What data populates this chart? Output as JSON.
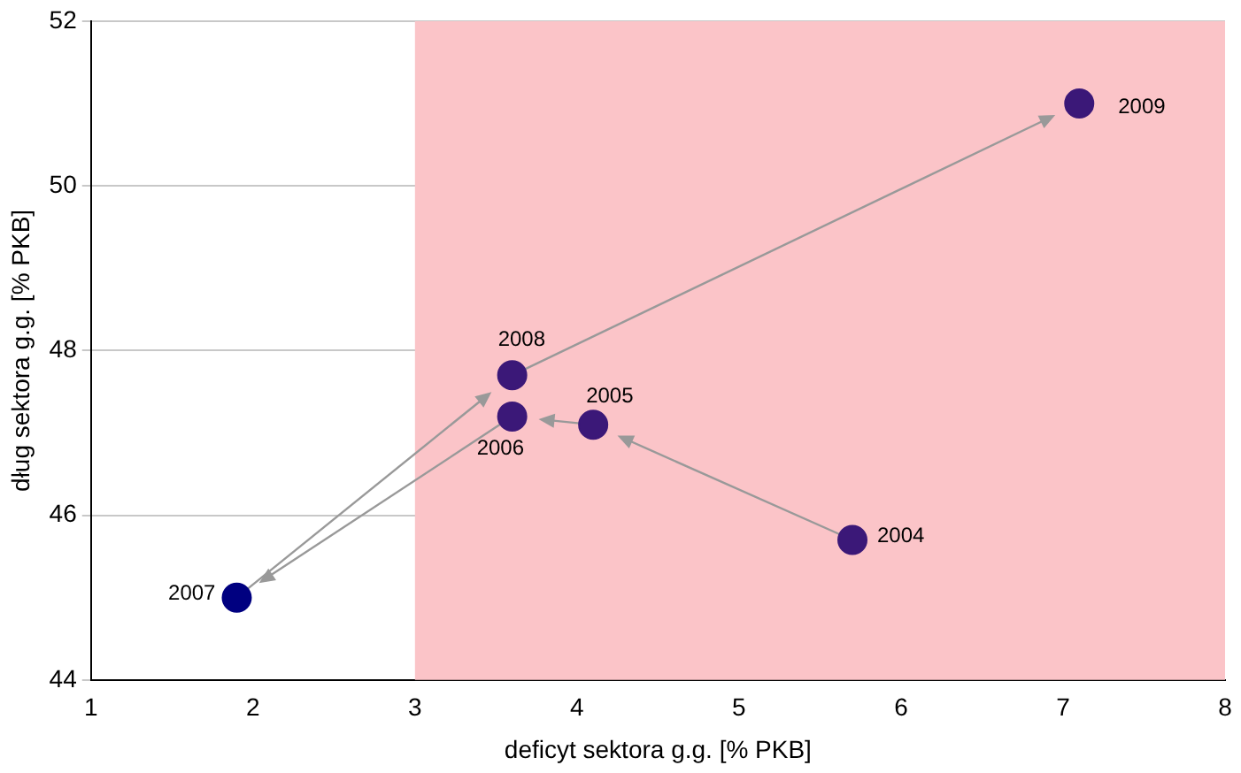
{
  "chart_data": {
    "type": "scatter",
    "xlabel": "deficyt sektora g.g. [% PKB]",
    "ylabel": "dług sektora g.g. [% PKB]",
    "x": [
      5.7,
      4.1,
      3.6,
      1.9,
      3.6,
      7.1
    ],
    "values": [
      45.7,
      47.1,
      47.2,
      45.0,
      47.7,
      51.0
    ],
    "colors": [
      "#3b1878",
      "#3b1878",
      "#3b1878",
      "#000080",
      "#3b1878",
      "#3b1878"
    ],
    "annotations": [
      {
        "text": "2004",
        "x": 5.7,
        "y": 45.7
      },
      {
        "text": "2005",
        "x": 4.1,
        "y": 47.1
      },
      {
        "text": "2006",
        "x": 3.6,
        "y": 47.2
      },
      {
        "text": "2007",
        "x": 1.9,
        "y": 45.0
      },
      {
        "text": "2008",
        "x": 3.6,
        "y": 47.7
      },
      {
        "text": "2009",
        "x": 7.1,
        "y": 51.0
      }
    ],
    "bands": [
      {
        "axis": "x",
        "from": 3,
        "to": 8,
        "color": "#fbc4c8"
      }
    ],
    "xlim": [
      1,
      8
    ],
    "xticks": [
      1,
      2,
      3,
      4,
      5,
      6,
      7,
      8
    ],
    "ylim": [
      44,
      52
    ],
    "yticks": [
      44,
      46,
      48,
      50,
      52
    ],
    "grid": "y",
    "marker": "circle",
    "legend": false
  }
}
